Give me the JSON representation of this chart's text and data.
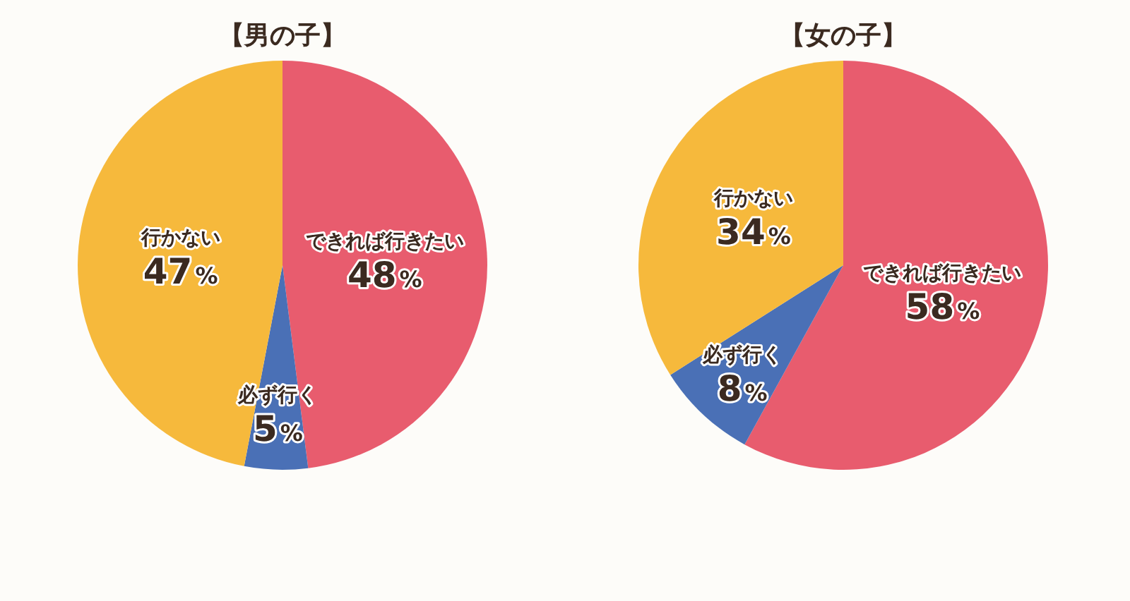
{
  "chart_data": [
    {
      "type": "pie",
      "title": "【男の子】",
      "categories": [
        "できれば行きたい",
        "必ず行く",
        "行かない"
      ],
      "values": [
        48,
        5,
        47
      ],
      "colors": [
        "#e85c6e",
        "#4a70b6",
        "#f6b93c"
      ],
      "value_labels": [
        "48%",
        "5%",
        "47%"
      ]
    },
    {
      "type": "pie",
      "title": "【女の子】",
      "categories": [
        "できれば行きたい",
        "必ず行く",
        "行かない"
      ],
      "values": [
        58,
        8,
        34
      ],
      "colors": [
        "#e85c6e",
        "#4a70b6",
        "#f6b93c"
      ],
      "value_labels": [
        "58%",
        "8%",
        "34%"
      ]
    }
  ]
}
